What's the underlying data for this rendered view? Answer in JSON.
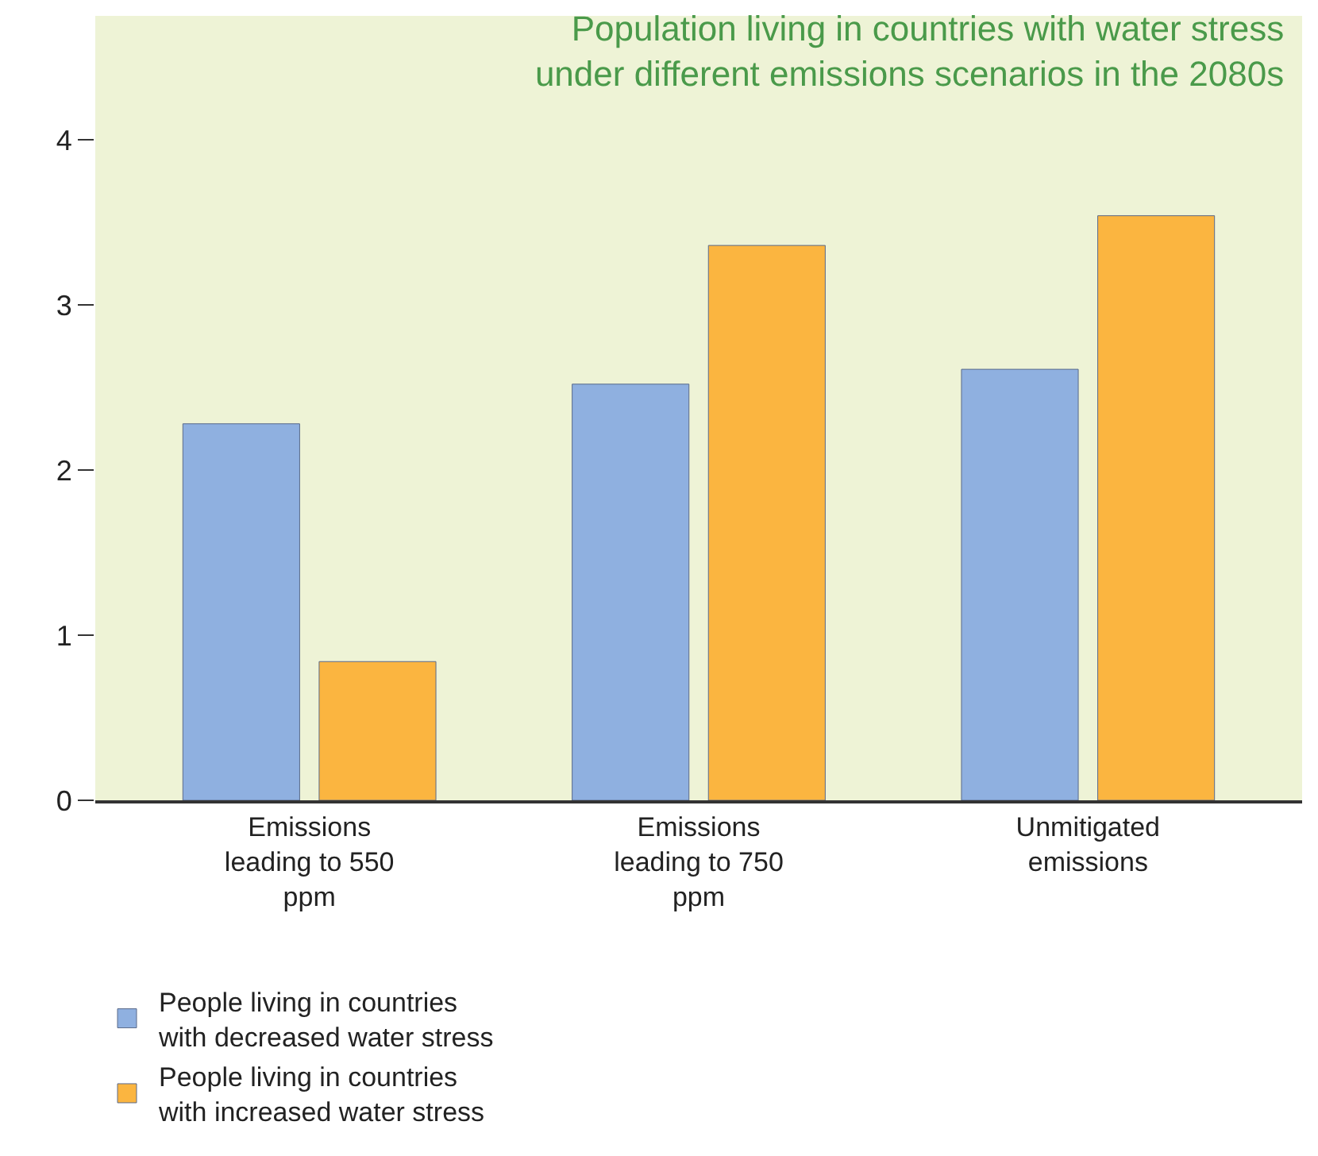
{
  "chart_data": {
    "type": "bar",
    "title": "Population living in countries with water stress under different emissions scenarios in the 2080s",
    "categories": [
      "Emissions leading to 550 ppm",
      "Emissions leading to 750 ppm",
      "Unmitigated emissions"
    ],
    "series": [
      {
        "name": "People living in countries with decreased water stress",
        "color": "#8fb0e0",
        "values": [
          2.28,
          2.52,
          2.61
        ]
      },
      {
        "name": "People living in countries with increased water stress",
        "color": "#fbb540",
        "values": [
          0.84,
          3.36,
          3.54
        ]
      }
    ],
    "ylim": [
      0,
      4.75
    ],
    "yticks": [
      0,
      1,
      2,
      3,
      4
    ],
    "grid": false,
    "legend": "bottom"
  }
}
